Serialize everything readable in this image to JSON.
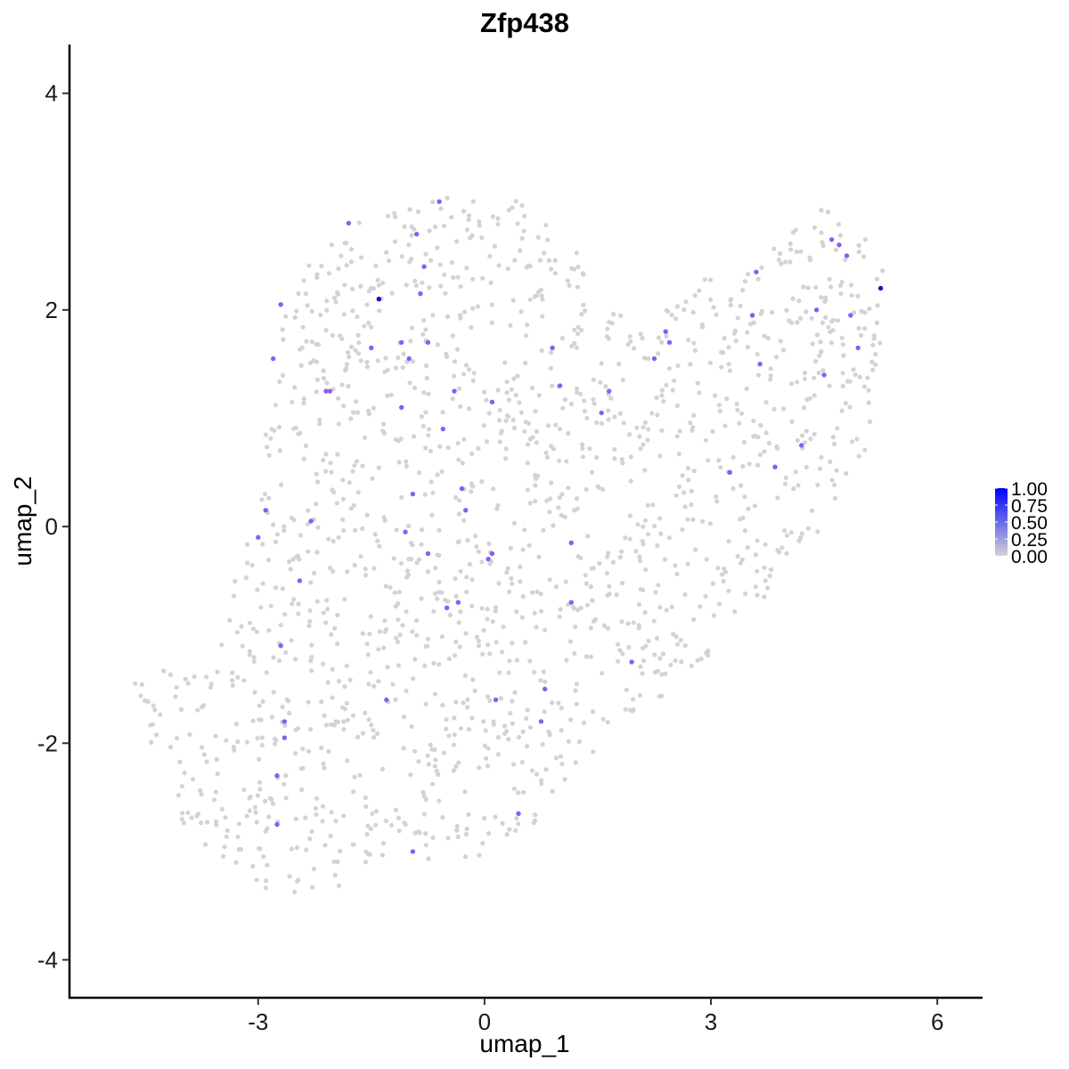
{
  "chart_data": {
    "type": "scatter",
    "title": "Zfp438",
    "xlabel": "umap_1",
    "ylabel": "umap_2",
    "xlim": [
      -5.5,
      6.6
    ],
    "ylim": [
      -4.35,
      4.45
    ],
    "x_ticks": [
      -3,
      0,
      3,
      6
    ],
    "x_tick_labels": [
      "-3",
      "0",
      "3",
      "6"
    ],
    "y_ticks": [
      -4,
      -2,
      0,
      2,
      4
    ],
    "y_tick_labels": [
      "-4",
      "-2",
      "0",
      "2",
      "4"
    ],
    "grid": false,
    "legend_position": "right",
    "legend": {
      "min": 0,
      "max": 1,
      "ticks": [
        1.0,
        0.75,
        0.5,
        0.25,
        0.0
      ],
      "labels": [
        "1.00",
        "0.75",
        "0.50",
        "0.25",
        "0.00"
      ],
      "low_color": "#d3d3d3",
      "high_color": "#0000ff"
    },
    "background_cells": {
      "color": "#d3d3d3",
      "value": 0,
      "count": 1600,
      "region_outline": [
        [
          -4.7,
          -1.25
        ],
        [
          -3.7,
          -1.3
        ],
        [
          -3.0,
          0.2
        ],
        [
          -2.9,
          1.2
        ],
        [
          -2.7,
          2.05
        ],
        [
          -2.1,
          2.75
        ],
        [
          -0.6,
          3.05
        ],
        [
          0.5,
          3.05
        ],
        [
          1.2,
          2.6
        ],
        [
          1.6,
          2.0
        ],
        [
          2.2,
          1.9
        ],
        [
          2.9,
          2.3
        ],
        [
          3.6,
          2.5
        ],
        [
          4.6,
          3.0
        ],
        [
          5.3,
          2.5
        ],
        [
          5.3,
          1.3
        ],
        [
          5.0,
          0.6
        ],
        [
          4.6,
          0.0
        ],
        [
          3.5,
          -0.8
        ],
        [
          2.6,
          -1.5
        ],
        [
          1.8,
          -1.8
        ],
        [
          1.0,
          -2.5
        ],
        [
          0.4,
          -3.0
        ],
        [
          -0.6,
          -3.1
        ],
        [
          -1.5,
          -3.2
        ],
        [
          -2.6,
          -3.5
        ],
        [
          -3.8,
          -3.0
        ],
        [
          -4.4,
          -2.2
        ]
      ]
    },
    "expressing_cells": [
      {
        "x": -1.4,
        "y": 2.1,
        "value": 1.0
      },
      {
        "x": 5.25,
        "y": 2.2,
        "value": 1.0
      },
      {
        "x": -1.8,
        "y": 2.8,
        "value": 0.55
      },
      {
        "x": -0.6,
        "y": 3.0,
        "value": 0.5
      },
      {
        "x": -0.9,
        "y": 2.7,
        "value": 0.55
      },
      {
        "x": -0.8,
        "y": 2.4,
        "value": 0.5
      },
      {
        "x": -0.85,
        "y": 2.15,
        "value": 0.55
      },
      {
        "x": -2.7,
        "y": 2.05,
        "value": 0.5
      },
      {
        "x": -2.8,
        "y": 1.55,
        "value": 0.5
      },
      {
        "x": -1.5,
        "y": 1.65,
        "value": 0.5
      },
      {
        "x": -1.1,
        "y": 1.7,
        "value": 0.5
      },
      {
        "x": -0.75,
        "y": 1.7,
        "value": 0.55
      },
      {
        "x": -1.0,
        "y": 1.55,
        "value": 0.5
      },
      {
        "x": -2.05,
        "y": 1.25,
        "value": 0.5
      },
      {
        "x": -2.1,
        "y": 1.25,
        "value": 0.5
      },
      {
        "x": -1.1,
        "y": 1.1,
        "value": 0.5
      },
      {
        "x": -0.4,
        "y": 1.25,
        "value": 0.55
      },
      {
        "x": -0.55,
        "y": 0.9,
        "value": 0.5
      },
      {
        "x": 0.1,
        "y": 1.15,
        "value": 0.5
      },
      {
        "x": 0.9,
        "y": 1.65,
        "value": 0.5
      },
      {
        "x": 1.0,
        "y": 1.3,
        "value": 0.5
      },
      {
        "x": 1.55,
        "y": 1.05,
        "value": 0.55
      },
      {
        "x": 1.65,
        "y": 1.25,
        "value": 0.5
      },
      {
        "x": 2.25,
        "y": 1.55,
        "value": 0.55
      },
      {
        "x": 2.4,
        "y": 1.8,
        "value": 0.5
      },
      {
        "x": 2.45,
        "y": 1.7,
        "value": 0.5
      },
      {
        "x": 3.55,
        "y": 1.95,
        "value": 0.55
      },
      {
        "x": 3.6,
        "y": 2.35,
        "value": 0.5
      },
      {
        "x": 3.65,
        "y": 1.5,
        "value": 0.5
      },
      {
        "x": 4.4,
        "y": 2.0,
        "value": 0.55
      },
      {
        "x": 4.6,
        "y": 2.65,
        "value": 0.55
      },
      {
        "x": 4.7,
        "y": 2.6,
        "value": 0.5
      },
      {
        "x": 4.8,
        "y": 2.5,
        "value": 0.5
      },
      {
        "x": 4.85,
        "y": 1.95,
        "value": 0.55
      },
      {
        "x": 4.95,
        "y": 1.65,
        "value": 0.5
      },
      {
        "x": 4.5,
        "y": 1.4,
        "value": 0.55
      },
      {
        "x": 4.2,
        "y": 0.75,
        "value": 0.55
      },
      {
        "x": 3.25,
        "y": 0.5,
        "value": 0.55
      },
      {
        "x": 3.85,
        "y": 0.55,
        "value": 0.5
      },
      {
        "x": -2.9,
        "y": 0.15,
        "value": 0.55
      },
      {
        "x": -3.0,
        "y": -0.1,
        "value": 0.5
      },
      {
        "x": -2.3,
        "y": 0.05,
        "value": 0.5
      },
      {
        "x": -2.45,
        "y": -0.5,
        "value": 0.5
      },
      {
        "x": -0.95,
        "y": 0.3,
        "value": 0.5
      },
      {
        "x": -1.05,
        "y": -0.05,
        "value": 0.5
      },
      {
        "x": -0.3,
        "y": 0.35,
        "value": 0.55
      },
      {
        "x": -0.25,
        "y": 0.15,
        "value": 0.5
      },
      {
        "x": -0.75,
        "y": -0.25,
        "value": 0.5
      },
      {
        "x": 0.1,
        "y": -0.25,
        "value": 0.5
      },
      {
        "x": 0.05,
        "y": -0.3,
        "value": 0.5
      },
      {
        "x": 1.15,
        "y": -0.15,
        "value": 0.55
      },
      {
        "x": 1.15,
        "y": -0.7,
        "value": 0.5
      },
      {
        "x": -0.35,
        "y": -0.7,
        "value": 0.5
      },
      {
        "x": -0.5,
        "y": -0.75,
        "value": 0.5
      },
      {
        "x": -2.7,
        "y": -1.1,
        "value": 0.55
      },
      {
        "x": 1.95,
        "y": -1.25,
        "value": 0.55
      },
      {
        "x": -1.3,
        "y": -1.6,
        "value": 0.5
      },
      {
        "x": 0.15,
        "y": -1.6,
        "value": 0.55
      },
      {
        "x": 0.8,
        "y": -1.5,
        "value": 0.5
      },
      {
        "x": 0.75,
        "y": -1.8,
        "value": 0.5
      },
      {
        "x": -2.65,
        "y": -1.8,
        "value": 0.5
      },
      {
        "x": -2.65,
        "y": -1.95,
        "value": 0.55
      },
      {
        "x": -2.75,
        "y": -2.3,
        "value": 0.55
      },
      {
        "x": -2.75,
        "y": -2.75,
        "value": 0.55
      },
      {
        "x": 0.45,
        "y": -2.65,
        "value": 0.55
      },
      {
        "x": -0.95,
        "y": -3.0,
        "value": 0.55
      }
    ]
  }
}
